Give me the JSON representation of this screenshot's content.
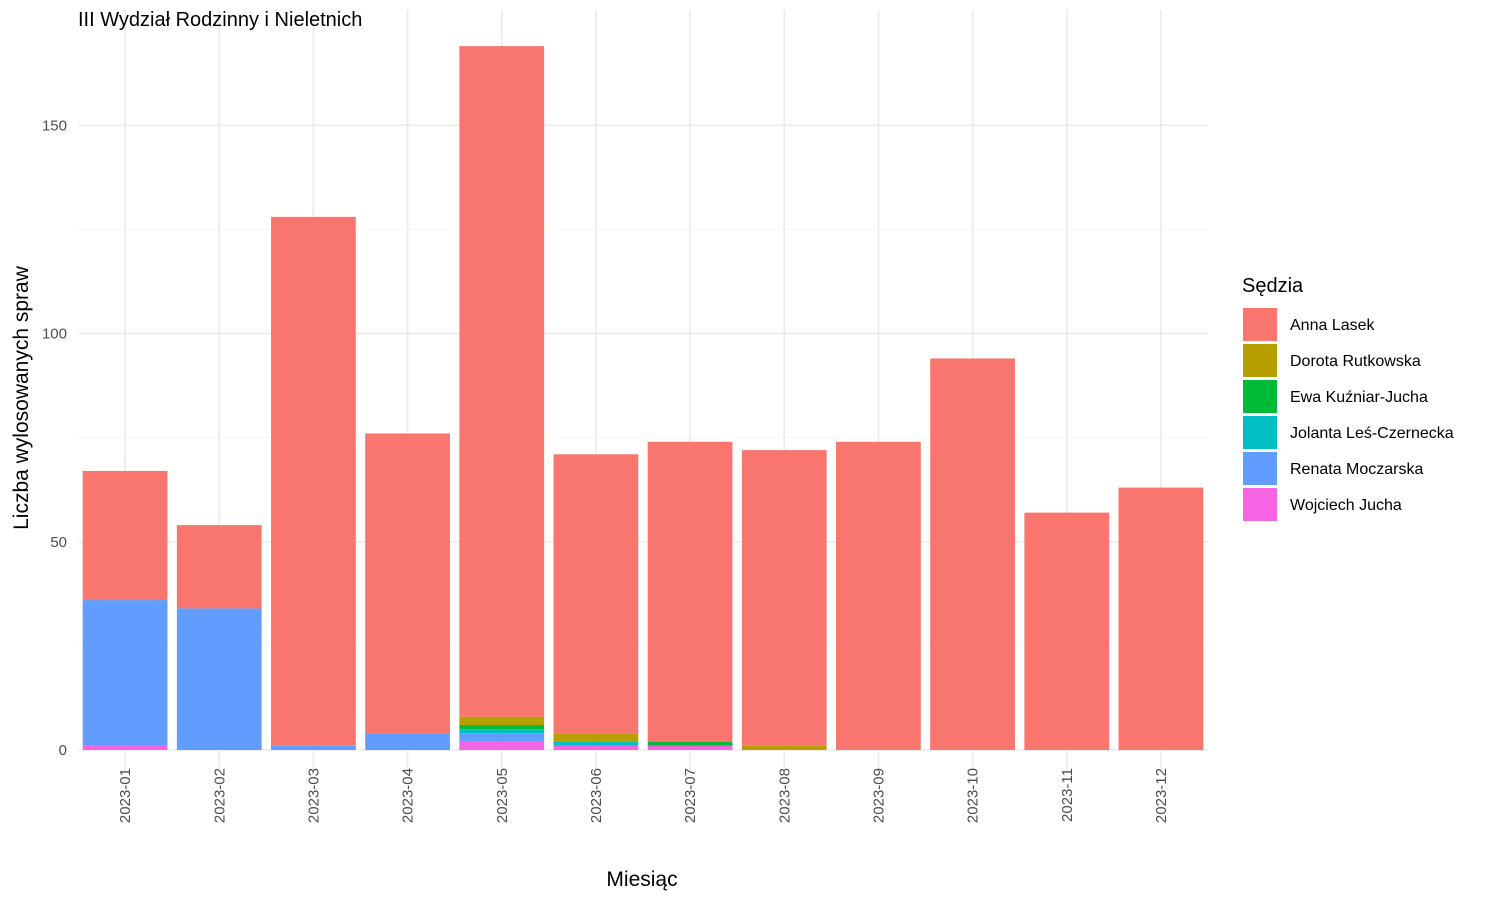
{
  "chart_data": {
    "type": "bar",
    "stacked": true,
    "title": "III Wydział Rodzinny i Nieletnich",
    "xlabel": "Miesiąc",
    "ylabel": "Liczba wylosowanych spraw",
    "ylim": [
      0,
      175
    ],
    "yticks": [
      0,
      50,
      100,
      150
    ],
    "grid": true,
    "legend_position": "right",
    "legend_title": "Sędzia",
    "categories": [
      "2023-01",
      "2023-02",
      "2023-03",
      "2023-04",
      "2023-05",
      "2023-06",
      "2023-07",
      "2023-08",
      "2023-09",
      "2023-10",
      "2023-11",
      "2023-12"
    ],
    "series": [
      {
        "name": "Wojciech Jucha",
        "color": "#F564E3",
        "values": [
          1,
          0,
          0,
          0,
          2,
          1,
          1,
          0,
          0,
          0,
          0,
          0
        ]
      },
      {
        "name": "Renata Moczarska",
        "color": "#619CFF",
        "values": [
          35,
          34,
          1,
          4,
          2,
          0,
          0,
          0,
          0,
          0,
          0,
          0
        ]
      },
      {
        "name": "Jolanta Leś-Czernecka",
        "color": "#00BFC4",
        "values": [
          0,
          0,
          0,
          0,
          1,
          1,
          0,
          0,
          0,
          0,
          0,
          0
        ]
      },
      {
        "name": "Ewa Kuźniar-Jucha",
        "color": "#00BA38",
        "values": [
          0,
          0,
          0,
          0,
          1,
          0,
          1,
          0,
          0,
          0,
          0,
          0
        ]
      },
      {
        "name": "Dorota Rutkowska",
        "color": "#B79F00",
        "values": [
          0,
          0,
          0,
          0,
          2,
          2,
          0,
          1,
          0,
          0,
          0,
          0
        ]
      },
      {
        "name": "Anna Lasek",
        "color": "#F8766D",
        "values": [
          31,
          20,
          127,
          72,
          161,
          67,
          72,
          71,
          74,
          94,
          57,
          63
        ]
      }
    ],
    "legend_order": [
      "Anna Lasek",
      "Dorota Rutkowska",
      "Ewa Kuźniar-Jucha",
      "Jolanta Leś-Czernecka",
      "Renata Moczarska",
      "Wojciech Jucha"
    ]
  }
}
